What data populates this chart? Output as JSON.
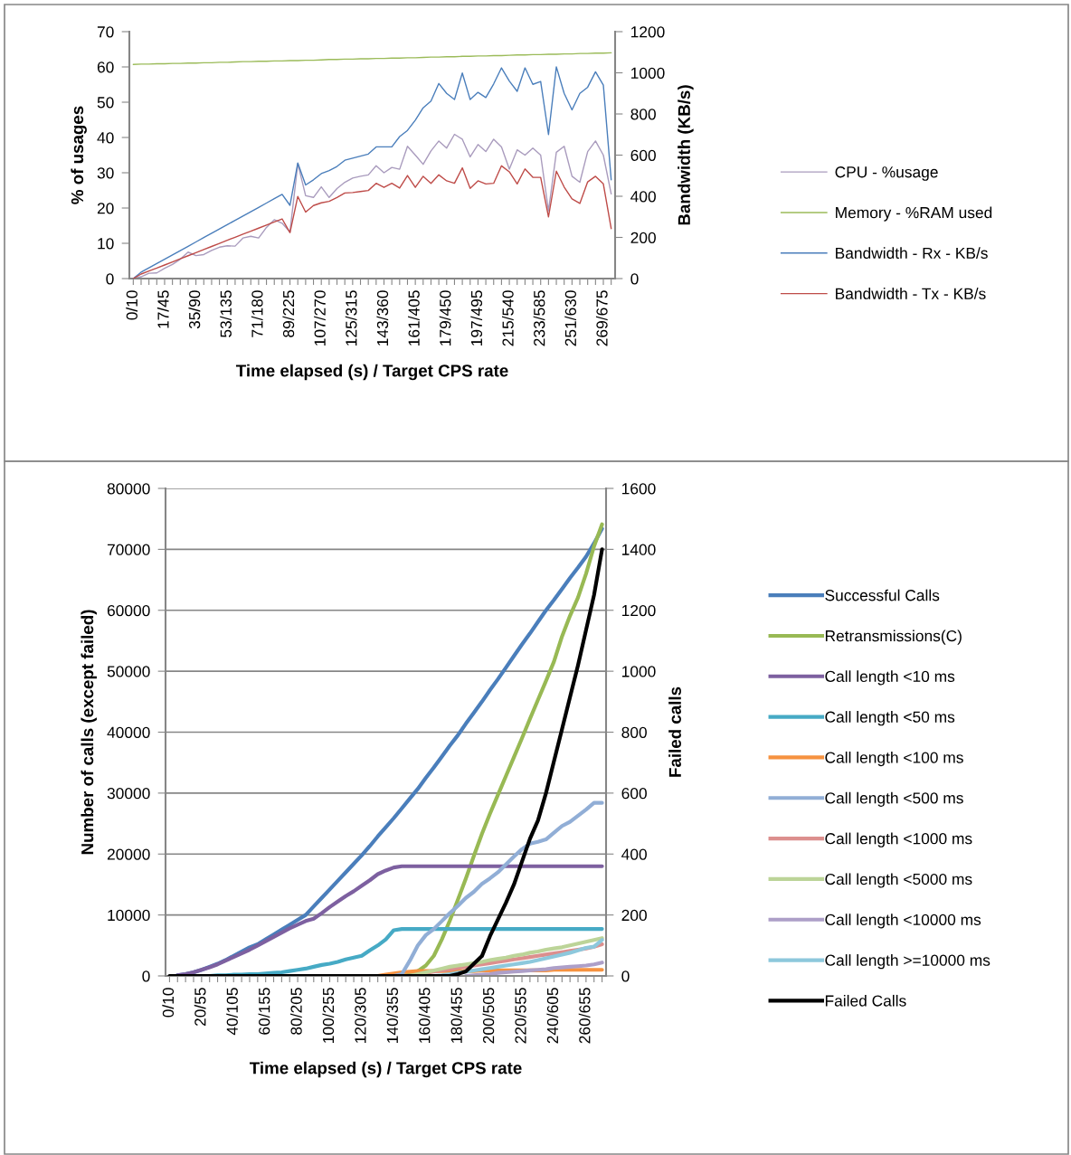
{
  "chart_data": [
    {
      "type": "line",
      "categories": [
        "0/10",
        null,
        null,
        null,
        "17/45",
        null,
        null,
        null,
        "35/90",
        null,
        null,
        null,
        "53/135",
        null,
        null,
        null,
        "71/180",
        null,
        null,
        null,
        "89/225",
        null,
        null,
        null,
        "107/270",
        null,
        null,
        null,
        "125/315",
        null,
        null,
        null,
        "143/360",
        null,
        null,
        null,
        "161/405",
        null,
        null,
        null,
        "179/450",
        null,
        null,
        null,
        "197/495",
        null,
        null,
        null,
        "215/540",
        null,
        null,
        null,
        "233/585",
        null,
        null,
        null,
        "251/630",
        null,
        null,
        null,
        "269/675",
        null
      ],
      "xlabel": "Time elapsed (s) / Target CPS rate",
      "ylabel": "% of usages",
      "y2label": "Bandwidth (KB/s)",
      "ylim": [
        0,
        70
      ],
      "yticks": [
        0,
        10,
        20,
        30,
        40,
        50,
        60,
        70
      ],
      "y2lim": [
        0,
        1200
      ],
      "y2ticks": [
        0,
        200,
        400,
        600,
        800,
        1000,
        1200
      ],
      "grid": false,
      "legend": "right",
      "series": [
        {
          "name": "CPU - %usage",
          "color": "#a99bbd",
          "values": [
            0,
            0.5,
            1.5,
            1.6,
            2.9,
            4,
            5.5,
            7.5,
            6.5,
            6.8,
            8,
            8.9,
            9.3,
            9.2,
            11.5,
            12,
            11.5,
            14.5,
            16.7,
            15.7,
            13.2,
            32.6,
            23.5,
            23,
            26,
            23,
            25.5,
            27.3,
            28.5,
            29,
            29.4,
            32,
            30,
            31.5,
            31,
            37.5,
            35,
            32.4,
            36.2,
            39,
            37,
            40.9,
            39.5,
            34.5,
            38,
            36,
            39.5,
            37.3,
            31,
            36.5,
            35,
            37,
            35,
            19.2,
            35.8,
            37.5,
            29,
            27.3,
            36,
            39,
            35,
            24
          ]
        },
        {
          "name": "Memory - %RAM used",
          "color": "#9bbb59",
          "values": [
            60.7,
            60.8,
            60.8,
            60.9,
            60.9,
            61.0,
            61.0,
            61.1,
            61.1,
            61.2,
            61.2,
            61.3,
            61.3,
            61.4,
            61.5,
            61.5,
            61.6,
            61.6,
            61.7,
            61.7,
            61.8,
            61.8,
            61.9,
            61.9,
            62.0,
            62.1,
            62.1,
            62.2,
            62.2,
            62.3,
            62.3,
            62.4,
            62.4,
            62.5,
            62.5,
            62.6,
            62.6,
            62.7,
            62.8,
            62.8,
            62.9,
            62.9,
            63.0,
            63.0,
            63.1,
            63.1,
            63.2,
            63.2,
            63.3,
            63.4,
            63.4,
            63.5,
            63.5,
            63.6,
            63.6,
            63.7,
            63.7,
            63.8,
            63.8,
            63.9,
            63.9,
            64.0
          ]
        },
        {
          "name": "Bandwidth - Rx - KB/s",
          "color": "#4a7ebb",
          "axis": "y2",
          "values": [
            0,
            31,
            52,
            73,
            94,
            115,
            136,
            157,
            178,
            199,
            220,
            241,
            262,
            283,
            304,
            325,
            346,
            367,
            388,
            409,
            356,
            562,
            455,
            480,
            510,
            525,
            545,
            575,
            585,
            595,
            605,
            640,
            640,
            640,
            690,
            720,
            770,
            830,
            863,
            948,
            900,
            870,
            999,
            870,
            905,
            880,
            946,
            1024,
            960,
            910,
            1024,
            944,
            958,
            700,
            1029,
            900,
            820,
            900,
            930,
            1005,
            940,
            480
          ]
        },
        {
          "name": "Bandwidth - Tx - KB/s",
          "color": "#be4b48",
          "axis": "y2",
          "values": [
            0,
            22,
            37,
            51,
            66,
            81,
            96,
            111,
            126,
            141,
            156,
            171,
            186,
            201,
            216,
            230,
            245,
            260,
            275,
            290,
            223,
            399,
            323,
            355,
            368,
            375,
            394,
            416,
            418,
            423,
            428,
            463,
            443,
            463,
            440,
            501,
            443,
            497,
            463,
            504,
            475,
            463,
            538,
            438,
            475,
            460,
            463,
            548,
            519,
            460,
            533,
            492,
            492,
            300,
            522,
            445,
            387,
            365,
            470,
            497,
            460,
            243
          ]
        }
      ]
    },
    {
      "type": "line",
      "categories": [
        "0/10",
        null,
        null,
        null,
        "20/55",
        null,
        null,
        null,
        "40/105",
        null,
        null,
        null,
        "60/155",
        null,
        null,
        null,
        "80/205",
        null,
        null,
        null,
        "100/255",
        null,
        null,
        null,
        "120/305",
        null,
        null,
        null,
        "140/355",
        null,
        null,
        null,
        "160/405",
        null,
        null,
        null,
        "180/455",
        null,
        null,
        null,
        "200/505",
        null,
        null,
        null,
        "220/555",
        null,
        null,
        null,
        "240/605",
        null,
        null,
        null,
        "260/655",
        null,
        null
      ],
      "xlabel": "Time elapsed (s) / Target CPS rate",
      "ylabel": "Number of calls (except failed)",
      "y2label": "Failed calls",
      "ylim": [
        0,
        80000
      ],
      "yticks": [
        0,
        10000,
        20000,
        30000,
        40000,
        50000,
        60000,
        70000,
        80000
      ],
      "y2lim": [
        0,
        1600
      ],
      "y2ticks": [
        0,
        200,
        400,
        600,
        800,
        1000,
        1200,
        1400,
        1600
      ],
      "grid": "y",
      "legend": "right",
      "series": [
        {
          "name": "Successful Calls",
          "color": "#4a7ebb",
          "values": [
            null,
            100,
            300,
            600,
            1000,
            1500,
            2000,
            2600,
            3300,
            4000,
            4700,
            5200,
            6000,
            6800,
            7600,
            8400,
            9200,
            10000,
            11400,
            12800,
            14200,
            15600,
            17000,
            18400,
            19800,
            21300,
            22900,
            24400,
            25900,
            27500,
            29100,
            30700,
            32500,
            34200,
            36000,
            37800,
            39500,
            41400,
            43200,
            45000,
            46900,
            48700,
            50600,
            52500,
            54400,
            56200,
            58100,
            60000,
            61700,
            63500,
            65300,
            67000,
            68800,
            71000,
            73400
          ]
        },
        {
          "name": "Retransmissions(C)",
          "color": "#98b954",
          "values": [
            null,
            null,
            null,
            null,
            null,
            null,
            null,
            null,
            null,
            null,
            null,
            null,
            null,
            null,
            null,
            null,
            null,
            null,
            null,
            null,
            null,
            null,
            null,
            null,
            null,
            null,
            null,
            null,
            null,
            0,
            200,
            800,
            1700,
            3300,
            6000,
            9100,
            12500,
            16000,
            19700,
            23300,
            26600,
            29700,
            32800,
            35900,
            39000,
            42200,
            45300,
            48400,
            51600,
            55700,
            59100,
            62100,
            66000,
            70500,
            74100
          ]
        },
        {
          "name": "Call length <10 ms",
          "color": "#7d60a0",
          "values": [
            null,
            100,
            300,
            600,
            1000,
            1400,
            1900,
            2500,
            3100,
            3700,
            4300,
            5000,
            5700,
            6400,
            7100,
            7800,
            8400,
            9000,
            9400,
            10300,
            11300,
            12200,
            13100,
            13900,
            14800,
            15700,
            16700,
            17300,
            17800,
            18000,
            18000,
            18000,
            18000,
            18000,
            18000,
            18000,
            18000,
            18000,
            18000,
            18000,
            18000,
            18000,
            18000,
            18000,
            18000,
            18000,
            18000,
            18000,
            18000,
            18000,
            18000,
            18000,
            18000,
            18000,
            18000
          ]
        },
        {
          "name": "Call length <50 ms",
          "color": "#46aac5",
          "values": [
            null,
            null,
            null,
            null,
            null,
            0,
            100,
            100,
            200,
            200,
            300,
            300,
            400,
            500,
            600,
            800,
            1000,
            1200,
            1500,
            1800,
            2000,
            2300,
            2700,
            3000,
            3300,
            4200,
            5000,
            6000,
            7500,
            7700,
            7700,
            7700,
            7700,
            7700,
            7700,
            7700,
            7700,
            7700,
            7700,
            7700,
            7700,
            7700,
            7700,
            7700,
            7700,
            7700,
            7700,
            7700,
            7700,
            7700,
            7700,
            7700,
            7700,
            7700,
            7700
          ]
        },
        {
          "name": "Call length <100 ms",
          "color": "#f69240",
          "values": [
            null,
            null,
            null,
            null,
            null,
            null,
            null,
            null,
            null,
            null,
            null,
            null,
            null,
            null,
            null,
            null,
            null,
            null,
            null,
            null,
            null,
            null,
            null,
            null,
            null,
            null,
            0,
            200,
            400,
            600,
            700,
            800,
            800,
            800,
            800,
            800,
            800,
            800,
            800,
            900,
            900,
            900,
            900,
            900,
            900,
            900,
            900,
            900,
            1000,
            1000,
            1000,
            1000,
            1000,
            1000,
            1000
          ]
        },
        {
          "name": "Call length <500 ms",
          "color": "#91aed6",
          "values": [
            null,
            null,
            null,
            null,
            null,
            null,
            null,
            null,
            null,
            null,
            null,
            null,
            null,
            null,
            null,
            null,
            null,
            null,
            null,
            null,
            null,
            null,
            null,
            null,
            null,
            null,
            null,
            null,
            0,
            300,
            2500,
            5000,
            6700,
            7700,
            9000,
            10300,
            11500,
            12800,
            13800,
            15100,
            16000,
            17000,
            18300,
            19600,
            20800,
            21700,
            22000,
            22400,
            23500,
            24600,
            25300,
            26300,
            27300,
            28400,
            28400
          ]
        },
        {
          "name": "Call length <1000 ms",
          "color": "#dc8f8e",
          "values": [
            null,
            null,
            null,
            null,
            null,
            null,
            null,
            null,
            null,
            null,
            null,
            null,
            null,
            null,
            null,
            null,
            null,
            null,
            null,
            null,
            null,
            null,
            null,
            null,
            null,
            null,
            null,
            null,
            null,
            null,
            0,
            200,
            500,
            700,
            900,
            1100,
            1300,
            1500,
            1700,
            1900,
            2100,
            2300,
            2500,
            2700,
            2900,
            3100,
            3300,
            3500,
            3700,
            3900,
            4100,
            4300,
            4500,
            4800,
            5200
          ]
        },
        {
          "name": "Call length <5000 ms",
          "color": "#bcd498",
          "values": [
            null,
            null,
            null,
            null,
            null,
            null,
            null,
            null,
            null,
            null,
            null,
            null,
            null,
            null,
            null,
            null,
            null,
            null,
            null,
            null,
            null,
            null,
            null,
            null,
            null,
            null,
            null,
            null,
            null,
            null,
            0,
            300,
            600,
            900,
            1200,
            1500,
            1700,
            1900,
            2100,
            2300,
            2600,
            2800,
            3000,
            3300,
            3500,
            3800,
            4000,
            4300,
            4500,
            4700,
            5000,
            5300,
            5600,
            5900,
            6200
          ]
        },
        {
          "name": "Call length <10000 ms",
          "color": "#ad9fc8",
          "values": [
            null,
            null,
            null,
            null,
            null,
            null,
            null,
            null,
            null,
            null,
            null,
            null,
            null,
            null,
            null,
            null,
            null,
            null,
            null,
            null,
            null,
            null,
            null,
            null,
            null,
            null,
            null,
            null,
            null,
            null,
            null,
            null,
            null,
            null,
            null,
            null,
            null,
            0,
            100,
            200,
            300,
            500,
            600,
            700,
            800,
            900,
            1000,
            1100,
            1300,
            1400,
            1500,
            1600,
            1700,
            1900,
            2200
          ]
        },
        {
          "name": "Call length >=10000 ms",
          "color": "#8dc8dc",
          "values": [
            null,
            null,
            null,
            null,
            null,
            null,
            null,
            null,
            null,
            null,
            null,
            null,
            null,
            null,
            null,
            null,
            null,
            null,
            null,
            null,
            null,
            null,
            null,
            null,
            null,
            null,
            null,
            null,
            null,
            null,
            null,
            null,
            null,
            0,
            100,
            300,
            500,
            700,
            900,
            1100,
            1300,
            1500,
            1700,
            1900,
            2100,
            2300,
            2600,
            2900,
            3200,
            3500,
            3800,
            4200,
            4600,
            4800,
            5900
          ]
        },
        {
          "name": "Failed Calls",
          "color": "#000000",
          "axis": "y2",
          "values": [
            0,
            0,
            0,
            0,
            0,
            0,
            0,
            0,
            0,
            0,
            0,
            0,
            0,
            0,
            0,
            0,
            0,
            0,
            0,
            0,
            0,
            0,
            0,
            0,
            0,
            0,
            0,
            0,
            0,
            0,
            0,
            0,
            0,
            0,
            0,
            0,
            6,
            15,
            40,
            65,
            130,
            185,
            240,
            300,
            375,
            450,
            510,
            600,
            705,
            810,
            915,
            1020,
            1135,
            1250,
            1400
          ]
        }
      ]
    }
  ]
}
